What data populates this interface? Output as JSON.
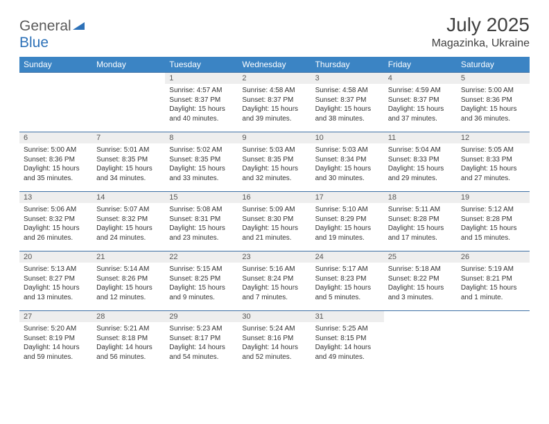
{
  "logo": {
    "part1": "General",
    "part2": "Blue"
  },
  "title": "July 2025",
  "location": "Magazinka, Ukraine",
  "colors": {
    "header_bg": "#3b84c4",
    "header_text": "#ffffff",
    "daynum_bg": "#eeeeee",
    "border": "#3b6ea3",
    "body_text": "#333333"
  },
  "dayNames": [
    "Sunday",
    "Monday",
    "Tuesday",
    "Wednesday",
    "Thursday",
    "Friday",
    "Saturday"
  ],
  "weeks": [
    [
      null,
      null,
      {
        "n": "1",
        "sr": "4:57 AM",
        "ss": "8:37 PM",
        "dl": "15 hours and 40 minutes."
      },
      {
        "n": "2",
        "sr": "4:58 AM",
        "ss": "8:37 PM",
        "dl": "15 hours and 39 minutes."
      },
      {
        "n": "3",
        "sr": "4:58 AM",
        "ss": "8:37 PM",
        "dl": "15 hours and 38 minutes."
      },
      {
        "n": "4",
        "sr": "4:59 AM",
        "ss": "8:37 PM",
        "dl": "15 hours and 37 minutes."
      },
      {
        "n": "5",
        "sr": "5:00 AM",
        "ss": "8:36 PM",
        "dl": "15 hours and 36 minutes."
      }
    ],
    [
      {
        "n": "6",
        "sr": "5:00 AM",
        "ss": "8:36 PM",
        "dl": "15 hours and 35 minutes."
      },
      {
        "n": "7",
        "sr": "5:01 AM",
        "ss": "8:35 PM",
        "dl": "15 hours and 34 minutes."
      },
      {
        "n": "8",
        "sr": "5:02 AM",
        "ss": "8:35 PM",
        "dl": "15 hours and 33 minutes."
      },
      {
        "n": "9",
        "sr": "5:03 AM",
        "ss": "8:35 PM",
        "dl": "15 hours and 32 minutes."
      },
      {
        "n": "10",
        "sr": "5:03 AM",
        "ss": "8:34 PM",
        "dl": "15 hours and 30 minutes."
      },
      {
        "n": "11",
        "sr": "5:04 AM",
        "ss": "8:33 PM",
        "dl": "15 hours and 29 minutes."
      },
      {
        "n": "12",
        "sr": "5:05 AM",
        "ss": "8:33 PM",
        "dl": "15 hours and 27 minutes."
      }
    ],
    [
      {
        "n": "13",
        "sr": "5:06 AM",
        "ss": "8:32 PM",
        "dl": "15 hours and 26 minutes."
      },
      {
        "n": "14",
        "sr": "5:07 AM",
        "ss": "8:32 PM",
        "dl": "15 hours and 24 minutes."
      },
      {
        "n": "15",
        "sr": "5:08 AM",
        "ss": "8:31 PM",
        "dl": "15 hours and 23 minutes."
      },
      {
        "n": "16",
        "sr": "5:09 AM",
        "ss": "8:30 PM",
        "dl": "15 hours and 21 minutes."
      },
      {
        "n": "17",
        "sr": "5:10 AM",
        "ss": "8:29 PM",
        "dl": "15 hours and 19 minutes."
      },
      {
        "n": "18",
        "sr": "5:11 AM",
        "ss": "8:28 PM",
        "dl": "15 hours and 17 minutes."
      },
      {
        "n": "19",
        "sr": "5:12 AM",
        "ss": "8:28 PM",
        "dl": "15 hours and 15 minutes."
      }
    ],
    [
      {
        "n": "20",
        "sr": "5:13 AM",
        "ss": "8:27 PM",
        "dl": "15 hours and 13 minutes."
      },
      {
        "n": "21",
        "sr": "5:14 AM",
        "ss": "8:26 PM",
        "dl": "15 hours and 12 minutes."
      },
      {
        "n": "22",
        "sr": "5:15 AM",
        "ss": "8:25 PM",
        "dl": "15 hours and 9 minutes."
      },
      {
        "n": "23",
        "sr": "5:16 AM",
        "ss": "8:24 PM",
        "dl": "15 hours and 7 minutes."
      },
      {
        "n": "24",
        "sr": "5:17 AM",
        "ss": "8:23 PM",
        "dl": "15 hours and 5 minutes."
      },
      {
        "n": "25",
        "sr": "5:18 AM",
        "ss": "8:22 PM",
        "dl": "15 hours and 3 minutes."
      },
      {
        "n": "26",
        "sr": "5:19 AM",
        "ss": "8:21 PM",
        "dl": "15 hours and 1 minute."
      }
    ],
    [
      {
        "n": "27",
        "sr": "5:20 AM",
        "ss": "8:19 PM",
        "dl": "14 hours and 59 minutes."
      },
      {
        "n": "28",
        "sr": "5:21 AM",
        "ss": "8:18 PM",
        "dl": "14 hours and 56 minutes."
      },
      {
        "n": "29",
        "sr": "5:23 AM",
        "ss": "8:17 PM",
        "dl": "14 hours and 54 minutes."
      },
      {
        "n": "30",
        "sr": "5:24 AM",
        "ss": "8:16 PM",
        "dl": "14 hours and 52 minutes."
      },
      {
        "n": "31",
        "sr": "5:25 AM",
        "ss": "8:15 PM",
        "dl": "14 hours and 49 minutes."
      },
      null,
      null
    ]
  ]
}
